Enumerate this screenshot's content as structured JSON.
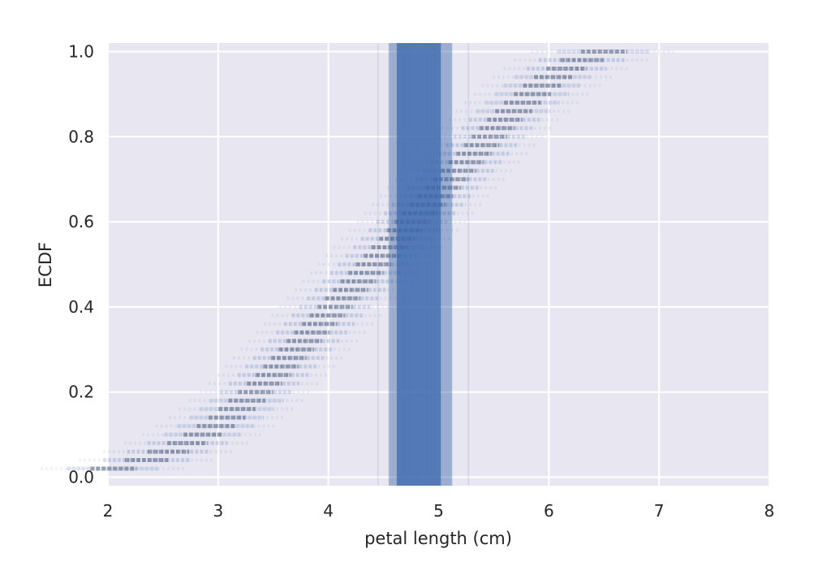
{
  "chart_data": {
    "type": "scatter",
    "title": "",
    "xlabel": "petal length (cm)",
    "ylabel": "ECDF",
    "xlim": [
      2,
      8
    ],
    "ylim": [
      -0.02,
      1.02
    ],
    "xticks": [
      2,
      3,
      4,
      5,
      6,
      7,
      8
    ],
    "yticks": [
      0.0,
      0.2,
      0.4,
      0.6,
      0.8,
      1.0
    ],
    "xtick_labels": [
      "2",
      "3",
      "4",
      "5",
      "6",
      "7",
      "8"
    ],
    "ytick_labels": [
      "0.0",
      "0.2",
      "0.4",
      "0.6",
      "0.8",
      "1.0"
    ],
    "grid": true,
    "background": "#e8e7f1",
    "grid_color": "#ffffff",
    "series_color": "#3e6bb0",
    "ecdf_levels": 50,
    "ecdf_step": 0.02,
    "ecdf_mean_x": [
      2.05,
      2.35,
      2.55,
      2.72,
      2.86,
      2.98,
      3.08,
      3.17,
      3.26,
      3.34,
      3.42,
      3.5,
      3.57,
      3.64,
      3.71,
      3.78,
      3.85,
      3.92,
      3.99,
      4.06,
      4.13,
      4.2,
      4.27,
      4.34,
      4.41,
      4.48,
      4.55,
      4.62,
      4.69,
      4.76,
      4.83,
      4.9,
      4.97,
      5.04,
      5.11,
      5.18,
      5.25,
      5.32,
      5.39,
      5.46,
      5.53,
      5.6,
      5.68,
      5.76,
      5.85,
      5.94,
      6.04,
      6.16,
      6.3,
      6.5
    ],
    "ecdf_spread": [
      0.3,
      0.28,
      0.27,
      0.26,
      0.25,
      0.25,
      0.24,
      0.24,
      0.24,
      0.23,
      0.23,
      0.23,
      0.23,
      0.23,
      0.23,
      0.23,
      0.23,
      0.23,
      0.23,
      0.23,
      0.23,
      0.23,
      0.23,
      0.23,
      0.23,
      0.23,
      0.23,
      0.23,
      0.23,
      0.23,
      0.23,
      0.23,
      0.23,
      0.23,
      0.23,
      0.23,
      0.23,
      0.23,
      0.23,
      0.23,
      0.23,
      0.23,
      0.24,
      0.24,
      0.24,
      0.25,
      0.25,
      0.26,
      0.28,
      0.3
    ],
    "vertical_band": {
      "x_min": 4.55,
      "x_max": 5.12,
      "core_min": 4.62,
      "core_max": 5.02,
      "outliers": [
        4.45,
        5.27
      ]
    }
  }
}
